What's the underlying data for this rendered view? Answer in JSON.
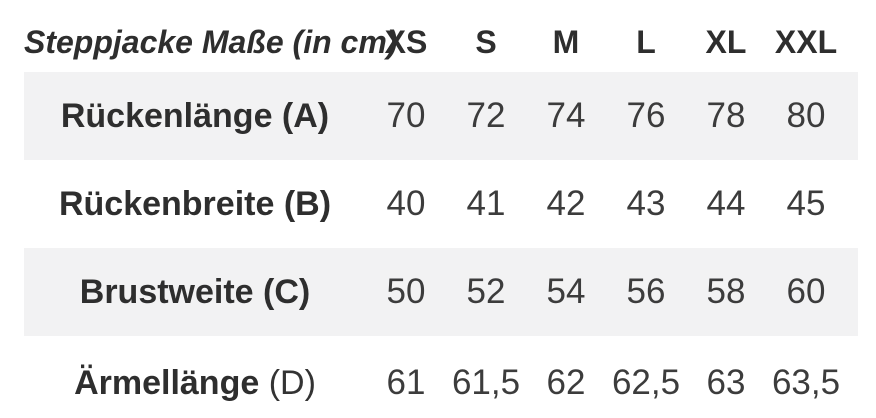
{
  "table": {
    "title": "Steppjacke Maße (in cm)",
    "sizes": [
      "XS",
      "S",
      "M",
      "L",
      "XL",
      "XXL"
    ],
    "rows": [
      {
        "label_bold": "Rückenlänge (A)",
        "label_regular": "",
        "values": [
          "70",
          "72",
          "74",
          "76",
          "78",
          "80"
        ]
      },
      {
        "label_bold": "Rückenbreite (B)",
        "label_regular": "",
        "values": [
          "40",
          "41",
          "42",
          "43",
          "44",
          "45"
        ]
      },
      {
        "label_bold": "Brustweite (C)",
        "label_regular": "",
        "values": [
          "50",
          "52",
          "54",
          "56",
          "58",
          "60"
        ]
      },
      {
        "label_bold": "Ärmellänge",
        "label_regular": " (D)",
        "values": [
          "61",
          "61,5",
          "62",
          "62,5",
          "63",
          "63,5"
        ]
      }
    ]
  },
  "colors": {
    "shaded_row_background": "#f2f2f3",
    "text_dark": "#2e2e2e",
    "text_value": "#3c3c3c",
    "page_background": "#ffffff"
  },
  "chart_data": {
    "type": "table",
    "title": "Steppjacke Maße (in cm)",
    "units": "cm",
    "columns": [
      "XS",
      "S",
      "M",
      "L",
      "XL",
      "XXL"
    ],
    "rows": [
      {
        "label": "Rückenlänge (A)",
        "values": [
          70,
          72,
          74,
          76,
          78,
          80
        ]
      },
      {
        "label": "Rückenbreite (B)",
        "values": [
          40,
          41,
          42,
          43,
          44,
          45
        ]
      },
      {
        "label": "Brustweite (C)",
        "values": [
          50,
          52,
          54,
          56,
          58,
          60
        ]
      },
      {
        "label": "Ärmellänge (D)",
        "values": [
          61,
          61.5,
          62,
          62.5,
          63,
          63.5
        ]
      }
    ]
  }
}
